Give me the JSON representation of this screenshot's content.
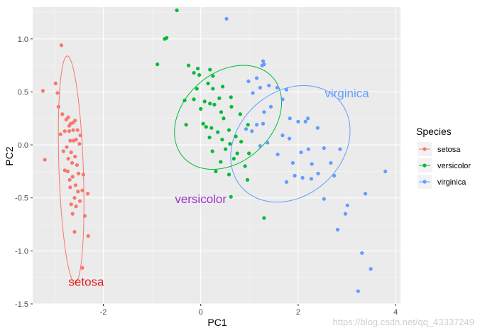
{
  "chart_data": {
    "type": "scatter",
    "title": "",
    "xlabel": "PC1",
    "ylabel": "PC2",
    "xlim": [
      -3.45,
      4.1
    ],
    "ylim": [
      -1.5,
      1.3
    ],
    "x_ticks": [
      -2,
      0,
      2,
      4
    ],
    "y_ticks": [
      -1.5,
      -1.0,
      -0.5,
      0.0,
      0.5,
      1.0
    ],
    "x_tick_labels": [
      "-2",
      "0",
      "2",
      "4"
    ],
    "y_tick_labels": [
      "-1.5",
      "-1.0",
      "-0.5",
      "0.0",
      "0.5",
      "1.0"
    ],
    "grid": true,
    "legend_position": "right",
    "legend_title": "Species",
    "series": [
      {
        "name": "setosa",
        "color": "#F8766D",
        "points": [
          [
            -2.86,
            0.94
          ],
          [
            -3.24,
            0.51
          ],
          [
            -2.94,
            0.49
          ],
          [
            -2.98,
            0.58
          ],
          [
            -3.2,
            -0.14
          ],
          [
            -2.92,
            0.36
          ],
          [
            -2.84,
            0.29
          ],
          [
            -2.76,
            0.24
          ],
          [
            -2.72,
            0.26
          ],
          [
            -2.67,
            0.2
          ],
          [
            -2.7,
            0.18
          ],
          [
            -2.62,
            0.21
          ],
          [
            -2.58,
            0.23
          ],
          [
            -2.7,
            0.13
          ],
          [
            -2.79,
            0.13
          ],
          [
            -2.88,
            0.1
          ],
          [
            -2.62,
            0.14
          ],
          [
            -2.53,
            0.14
          ],
          [
            -2.61,
            0.04
          ],
          [
            -2.56,
            0.05
          ],
          [
            -2.68,
            0.04
          ],
          [
            -2.82,
            -0.06
          ],
          [
            -2.75,
            -0.02
          ],
          [
            -2.49,
            0.01
          ],
          [
            -2.47,
            0.09
          ],
          [
            -2.66,
            -0.07
          ],
          [
            -2.58,
            -0.11
          ],
          [
            -2.72,
            -0.13
          ],
          [
            -2.64,
            -0.17
          ],
          [
            -2.54,
            -0.19
          ],
          [
            -2.79,
            -0.24
          ],
          [
            -2.73,
            -0.25
          ],
          [
            -2.63,
            -0.3
          ],
          [
            -2.69,
            -0.33
          ],
          [
            -2.51,
            -0.27
          ],
          [
            -2.41,
            -0.28
          ],
          [
            -2.57,
            -0.38
          ],
          [
            -2.68,
            -0.4
          ],
          [
            -2.52,
            -0.44
          ],
          [
            -2.43,
            -0.43
          ],
          [
            -2.59,
            -0.5
          ],
          [
            -2.66,
            -0.56
          ],
          [
            -2.48,
            -0.53
          ],
          [
            -2.56,
            -0.58
          ],
          [
            -2.63,
            -0.65
          ],
          [
            -2.32,
            -0.46
          ],
          [
            -2.38,
            -0.67
          ],
          [
            -2.59,
            -0.82
          ],
          [
            -2.31,
            -0.86
          ],
          [
            -2.43,
            -1.16
          ]
        ]
      },
      {
        "name": "versicolor",
        "color": "#00BA38",
        "points": [
          [
            -0.49,
            1.27
          ],
          [
            -0.7,
            1.01
          ],
          [
            -0.74,
            1.0
          ],
          [
            -0.89,
            0.76
          ],
          [
            -0.25,
            0.75
          ],
          [
            -0.06,
            0.72
          ],
          [
            -0.03,
            0.66
          ],
          [
            -0.14,
            0.68
          ],
          [
            0.19,
            0.71
          ],
          [
            0.25,
            0.65
          ],
          [
            0.15,
            0.58
          ],
          [
            -0.08,
            0.53
          ],
          [
            0.25,
            0.53
          ],
          [
            0.38,
            0.44
          ],
          [
            0.45,
            0.55
          ],
          [
            0.62,
            0.45
          ],
          [
            -0.14,
            0.43
          ],
          [
            0.08,
            0.41
          ],
          [
            0.19,
            0.39
          ],
          [
            0.28,
            0.38
          ],
          [
            0.42,
            0.31
          ],
          [
            -0.33,
            0.42
          ],
          [
            0.0,
            0.34
          ],
          [
            0.47,
            0.25
          ],
          [
            0.63,
            0.36
          ],
          [
            0.81,
            0.29
          ],
          [
            -0.3,
            0.19
          ],
          [
            0.05,
            0.2
          ],
          [
            0.11,
            0.17
          ],
          [
            0.22,
            0.16
          ],
          [
            0.35,
            0.12
          ],
          [
            0.58,
            0.14
          ],
          [
            0.72,
            0.08
          ],
          [
            0.18,
            0.07
          ],
          [
            0.44,
            0.05
          ],
          [
            0.6,
            0.01
          ],
          [
            0.83,
            0.03
          ],
          [
            0.97,
            0.19
          ],
          [
            0.24,
            -0.06
          ],
          [
            0.51,
            -0.04
          ],
          [
            0.75,
            -0.08
          ],
          [
            0.99,
            -0.08
          ],
          [
            0.41,
            -0.16
          ],
          [
            0.68,
            -0.13
          ],
          [
            0.31,
            -0.25
          ],
          [
            0.58,
            -0.28
          ],
          [
            0.91,
            -0.2
          ],
          [
            0.96,
            -0.33
          ],
          [
            1.3,
            -0.69
          ],
          [
            0.62,
            -0.49
          ]
        ]
      },
      {
        "name": "virginica",
        "color": "#619CFF",
        "points": [
          [
            0.53,
            1.19
          ],
          [
            1.28,
            0.79
          ],
          [
            1.3,
            0.76
          ],
          [
            1.26,
            0.75
          ],
          [
            1.15,
            0.63
          ],
          [
            1.22,
            0.54
          ],
          [
            1.4,
            0.56
          ],
          [
            1.57,
            0.54
          ],
          [
            1.76,
            0.52
          ],
          [
            1.68,
            0.43
          ],
          [
            0.98,
            0.6
          ],
          [
            1.07,
            0.49
          ],
          [
            1.44,
            0.36
          ],
          [
            1.3,
            0.31
          ],
          [
            1.83,
            0.25
          ],
          [
            2.0,
            0.22
          ],
          [
            2.15,
            0.22
          ],
          [
            2.2,
            0.25
          ],
          [
            2.4,
            0.16
          ],
          [
            1.68,
            0.09
          ],
          [
            1.82,
            0.06
          ],
          [
            1.28,
            0.2
          ],
          [
            1.15,
            0.19
          ],
          [
            0.93,
            0.15
          ],
          [
            1.05,
            0.13
          ],
          [
            1.37,
            0.02
          ],
          [
            1.22,
            -0.01
          ],
          [
            1.58,
            -0.09
          ],
          [
            2.06,
            -0.07
          ],
          [
            2.21,
            -0.04
          ],
          [
            2.53,
            -0.03
          ],
          [
            2.86,
            -0.04
          ],
          [
            1.89,
            -0.17
          ],
          [
            2.28,
            -0.18
          ],
          [
            2.67,
            -0.17
          ],
          [
            2.74,
            -0.29
          ],
          [
            2.41,
            -0.27
          ],
          [
            2.27,
            -0.32
          ],
          [
            2.09,
            -0.31
          ],
          [
            1.93,
            -0.29
          ],
          [
            1.76,
            -0.35
          ],
          [
            2.53,
            -0.51
          ],
          [
            3.01,
            -0.57
          ],
          [
            3.38,
            -0.46
          ],
          [
            3.79,
            -0.25
          ],
          [
            2.97,
            -0.65
          ],
          [
            3.49,
            -1.17
          ],
          [
            3.31,
            -1.02
          ],
          [
            3.23,
            -1.38
          ],
          [
            2.81,
            -0.8
          ]
        ]
      }
    ],
    "ellipses": [
      {
        "series": "setosa",
        "cx": -2.66,
        "cy": -0.23,
        "rx": 0.25,
        "ry": 1.07,
        "angle_deg": -2
      },
      {
        "series": "versicolor",
        "cx": 0.56,
        "cy": 0.26,
        "rx": 1.23,
        "ry": 0.42,
        "angle_deg": -42
      },
      {
        "series": "virginica",
        "cx": 1.84,
        "cy": 0.01,
        "rx": 1.34,
        "ry": 0.49,
        "angle_deg": -42
      }
    ],
    "annotations": [
      {
        "text": "setosa",
        "x": -2.35,
        "y": -1.29,
        "color": "#E41A1C"
      },
      {
        "text": "versicolor",
        "x": 0.0,
        "y": -0.51,
        "color": "#9932CC"
      },
      {
        "text": "virginica",
        "x": 3.0,
        "y": 0.49,
        "color": "#619CFF"
      }
    ]
  },
  "watermark": "https://blog.csdn.net/qq_43337249"
}
